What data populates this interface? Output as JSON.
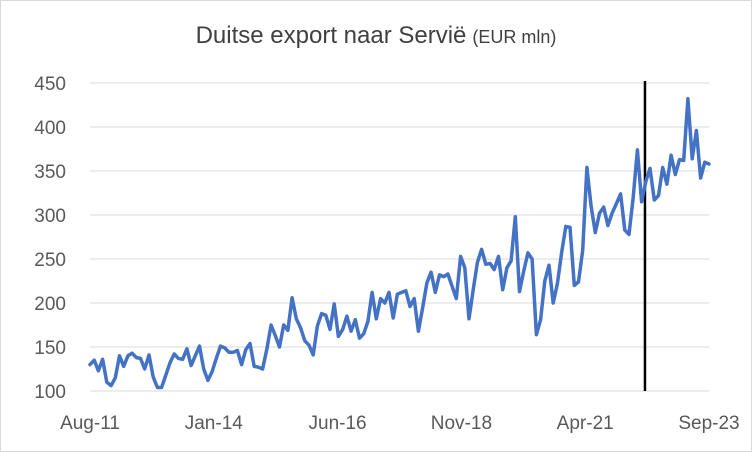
{
  "chart_data": {
    "type": "line",
    "title": "Duitse export naar Servië",
    "subtitle": "(EUR mln)",
    "xlabel": "",
    "ylabel": "",
    "ylim": [
      100,
      450
    ],
    "y_ticks": [
      100,
      150,
      200,
      250,
      300,
      350,
      400,
      450
    ],
    "x_tick_labels": [
      "Aug-11",
      "Jan-14",
      "Jun-16",
      "Nov-18",
      "Apr-21",
      "Sep-23"
    ],
    "x_start": "2011-08",
    "x_end": "2023-09",
    "grid": "horizontal",
    "vertical_marker": "2022-06",
    "colors": {
      "line": "#4472c4",
      "marker": "#000000",
      "grid": "#d9d9d9",
      "text": "#595959",
      "title": "#404040"
    },
    "series": [
      {
        "values": [
          130,
          135,
          123,
          136,
          110,
          106,
          115,
          140,
          128,
          140,
          143,
          138,
          137,
          125,
          141,
          116,
          104,
          104,
          118,
          132,
          142,
          137,
          136,
          148,
          129,
          140,
          151,
          125,
          112,
          122,
          137,
          151,
          149,
          144,
          144,
          146,
          130,
          147,
          154,
          128,
          127,
          125,
          148,
          175,
          163,
          150,
          175,
          169,
          206,
          182,
          172,
          157,
          152,
          141,
          174,
          188,
          186,
          170,
          199,
          162,
          170,
          185,
          168,
          181,
          160,
          165,
          179,
          212,
          182,
          205,
          200,
          212,
          183,
          210,
          212,
          214,
          196,
          205,
          168,
          195,
          223,
          235,
          212,
          232,
          230,
          233,
          219,
          205,
          253,
          240,
          182,
          215,
          246,
          261,
          244,
          245,
          238,
          253,
          215,
          240,
          248,
          298,
          213,
          236,
          257,
          250,
          164,
          181,
          225,
          243,
          200,
          222,
          257,
          287,
          286,
          220,
          224,
          260,
          354,
          310,
          280,
          302,
          309,
          288,
          302,
          313,
          324,
          283,
          278,
          320,
          374,
          315,
          338,
          353,
          317,
          322,
          354,
          335,
          368,
          346,
          363,
          362,
          432,
          364,
          396,
          342,
          360,
          358
        ]
      }
    ]
  }
}
